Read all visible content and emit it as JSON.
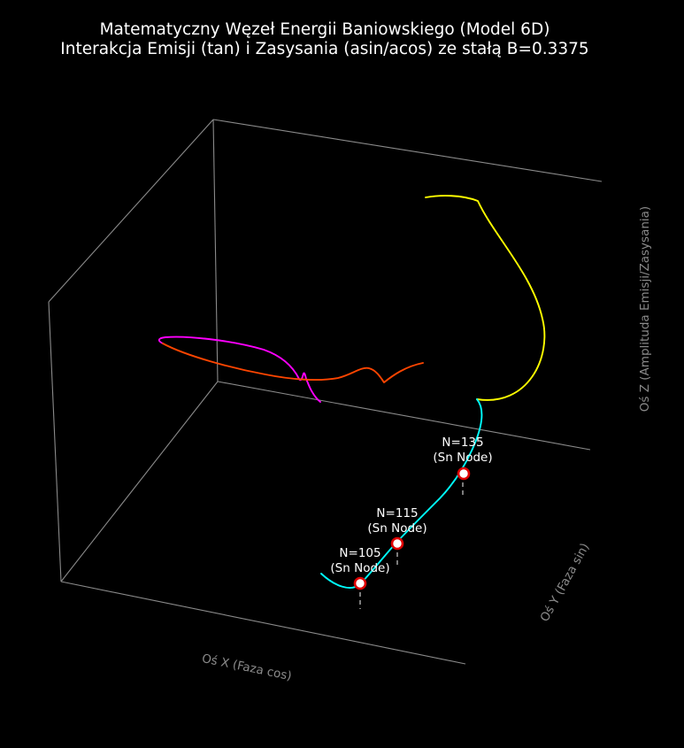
{
  "chart_data": {
    "type": "line3d",
    "title": [
      "Matematyczny Węzeł Energii Baniowskiego (Model 6D)",
      "Interakcja Emisji (tan) i Zasysania (asin/acos) ze stałą B=0.3375"
    ],
    "xlabel": "Oś X (Faza cos)",
    "ylabel": "Oś Y (Faza sin)",
    "zlabel": "Oś Z (Amplituda Emisji/Zasysania)",
    "grid": false,
    "background": "#000000",
    "box_color": "#8a8a8a",
    "series": [
      {
        "color": "#ff00ff"
      },
      {
        "color": "#ff4500"
      },
      {
        "color": "#ffff00"
      },
      {
        "color": "#00ffff"
      }
    ],
    "markers": [
      {
        "n_label": "N=105",
        "sub_label": "(Sn Node)"
      },
      {
        "n_label": "N=115",
        "sub_label": "(Sn Node)"
      },
      {
        "n_label": "N=135",
        "sub_label": "(Sn Node)"
      }
    ],
    "marker_style": {
      "fill": "#ffffff",
      "edge": "#dd0000"
    }
  }
}
